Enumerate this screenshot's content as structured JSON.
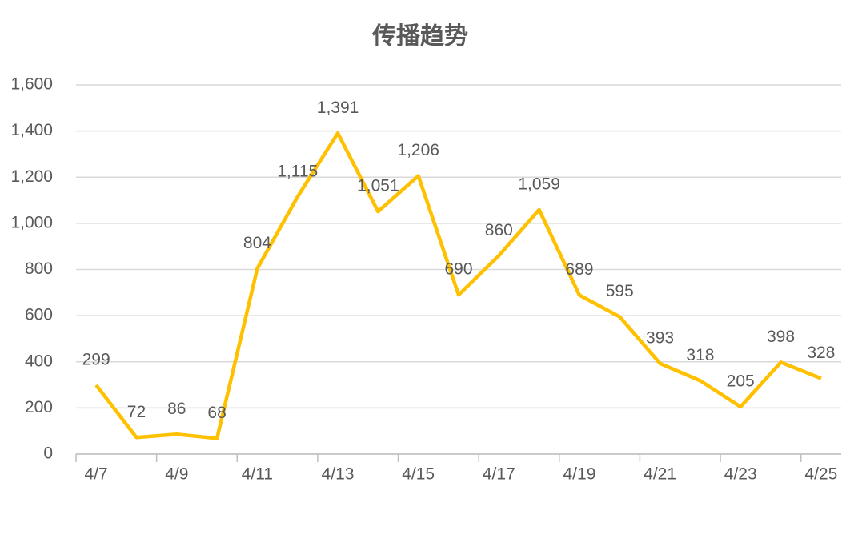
{
  "chart_data": {
    "type": "line",
    "title": "传播趋势",
    "categories": [
      "4/7",
      null,
      "4/9",
      null,
      "4/11",
      null,
      "4/13",
      null,
      "4/15",
      null,
      "4/17",
      null,
      "4/19",
      null,
      "4/21",
      null,
      "4/23",
      null,
      "4/25"
    ],
    "series": [
      {
        "color": "#FFC000",
        "values": [
          299,
          72,
          86,
          68,
          804,
          1115,
          1391,
          1051,
          1206,
          690,
          860,
          1059,
          689,
          595,
          393,
          318,
          205,
          398,
          328
        ],
        "value_labels": [
          "299",
          "72",
          "86",
          "68",
          "804",
          "1,115",
          "1,391",
          "1,051",
          "1,206",
          "690",
          "860",
          "1,059",
          "689",
          "595",
          "393",
          "318",
          "205",
          "398",
          "328"
        ]
      }
    ],
    "ylim": [
      0,
      1600
    ],
    "yticks": [
      0,
      200,
      400,
      600,
      800,
      {
        "value": 1000,
        "label": "1,000"
      },
      {
        "value": 1200,
        "label": "1,200"
      },
      {
        "value": 1400,
        "label": "1,400"
      },
      {
        "value": 1600,
        "label": "1,600"
      }
    ],
    "grid": true
  }
}
